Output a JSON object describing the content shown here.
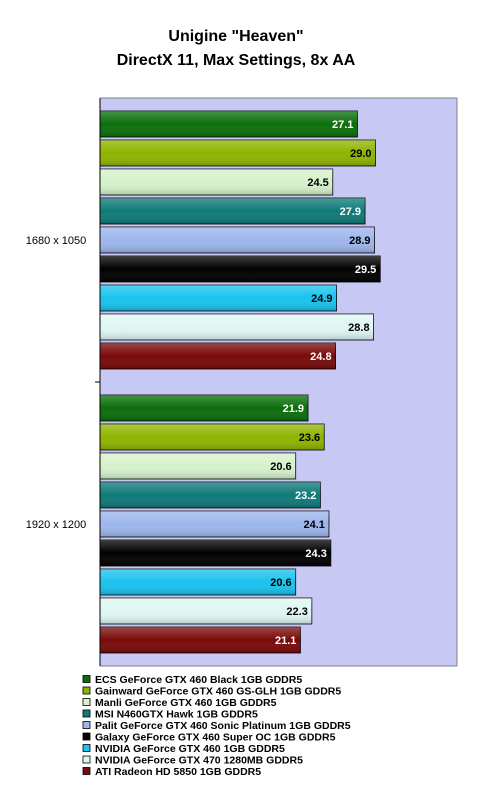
{
  "chart_data": {
    "type": "bar",
    "orientation": "horizontal",
    "title": "Unigine \"Heaven\"",
    "subtitle": "DirectX 11, Max Settings, 8x AA",
    "categories": [
      "1680 x 1050",
      "1920 x 1200"
    ],
    "xlim": [
      0,
      40
    ],
    "grid": false,
    "legend": "bottom",
    "series": [
      {
        "name": "ECS GeForce GTX 460 Black 1GB GDDR5",
        "values": [
          27.1,
          21.9
        ],
        "color": "#0b6e0b",
        "label_color": "#ffffff"
      },
      {
        "name": "Gainward GeForce GTX 460 GS-GLH 1GB GDDR5",
        "values": [
          29.0,
          23.6
        ],
        "color": "#8fb400",
        "label_color": "#000000"
      },
      {
        "name": "Manli GeForce GTX 460 1GB GDDR5",
        "values": [
          24.5,
          20.6
        ],
        "color": "#d6f2cc",
        "label_color": "#000000"
      },
      {
        "name": "MSI N460GTX Hawk 1GB GDDR5",
        "values": [
          27.9,
          23.2
        ],
        "color": "#0f7a78",
        "label_color": "#ffffff"
      },
      {
        "name": "Palit GeForce GTX 460 Sonic Platinum 1GB GDDR5",
        "values": [
          28.9,
          24.1
        ],
        "color": "#9db6ec",
        "label_color": "#000000"
      },
      {
        "name": "Galaxy GeForce GTX 460 Super OC 1GB GDDR5",
        "values": [
          29.5,
          24.3
        ],
        "color": "#000000",
        "label_color": "#ffffff"
      },
      {
        "name": "NVIDIA GeForce GTX 460 1GB GDDR5",
        "values": [
          24.9,
          20.6
        ],
        "color": "#19c3ee",
        "label_color": "#000000"
      },
      {
        "name": "NVIDIA GeForce GTX 470 1280MB GDDR5",
        "values": [
          28.8,
          22.3
        ],
        "color": "#dff7f4",
        "label_color": "#000000"
      },
      {
        "name": "ATI Radeon HD 5850 1GB GDDR5",
        "values": [
          24.8,
          21.1
        ],
        "color": "#7a0a0a",
        "label_color": "#ffffff"
      }
    ],
    "colors": {
      "plot_background": "#c8c8f5",
      "page_background": "#ffffff"
    }
  }
}
